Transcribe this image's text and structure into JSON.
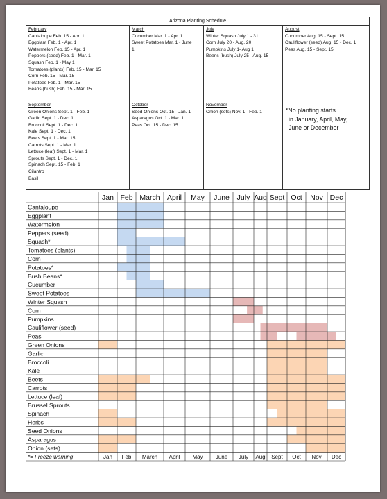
{
  "schedule": {
    "title": "Arizona Planting Schedule",
    "row1": [
      {
        "month": "February",
        "items": [
          "Cantaloupe Feb. 15 - Apr. 1",
          "Eggplant Feb. 1 - Apr. 1",
          "Watermelon Feb. 15 - Apr. 1",
          "Peppers (seed) Feb. 1 - Mar. 1",
          "Squash Feb. 1 - May 1",
          "Tomatoes (plants) Feb. 15 - Mar. 15",
          "Corn Feb. 15 - Mar. 15",
          "Potatoes Feb. 1 - Mar. 15",
          "Beans (bush) Feb. 15 - Mar. 15"
        ]
      },
      {
        "month": "March",
        "items": [
          "Cucumber Mar. 1 - Apr. 1",
          "Sweet Potatoes Mar. 1 - June",
          "1"
        ]
      },
      {
        "month": "July",
        "items": [
          "Winter Squash July 1 - 31",
          "Corn July 20 - Aug. 20",
          "Pumpkins July 1- Aug 1",
          "Beans (bush) July 25 - Aug. 15"
        ]
      },
      {
        "month": "August",
        "items": [
          "Cucumber Aug. 15 - Sept. 15",
          "Cauliflower (seed) Aug. 15 - Dec. 1",
          "Peas Aug. 15 - Sept. 15"
        ]
      }
    ],
    "row2": [
      {
        "month": "September",
        "items": [
          "Green Onions Sept. 1 - Feb. 1",
          "Garlic Sept. 1 - Dec. 1",
          "Broccoli Sept. 1 - Dec. 1",
          "Kale Sept. 1 - Dec. 1",
          "Beets Sept. 1 - Mar. 15",
          "Carrots Sept. 1 - Mar. 1",
          "Lettuce (leaf) Sept. 1 - Mar. 1",
          "Sprouts Sept. 1 - Dec. 1",
          "Spinach Sept. 15 - Feb. 1",
          "Cilantro",
          "Basil"
        ]
      },
      {
        "month": "October",
        "items": [
          "Seed Onions Oct. 15 - Jan. 1",
          "Asparagus Oct. 1 - Mar. 1",
          "Peas Oct. 15 - Dec. 15"
        ]
      },
      {
        "month": "November",
        "items": [
          "Onion (sets) Nov. 1 - Feb. 1"
        ]
      },
      {
        "note_lines": [
          "*No planting starts",
          "in January, April, May,",
          "June or December"
        ]
      }
    ]
  },
  "grid": {
    "months": [
      "Jan",
      "Feb",
      "March",
      "April",
      "May",
      "June",
      "July",
      "Aug",
      "Sept",
      "Oct",
      "Nov",
      "Dec"
    ],
    "footer_note": "*= Freeze warning",
    "colors": {
      "warm_season": "#c5d9f1",
      "summer_fall": "#e6b8b7",
      "cool_season": "#fcd5b4",
      "grid_line": "#222222"
    },
    "crops": [
      {
        "name": "Cantaloupe",
        "season": "warm_season",
        "months": [
          [
            2,
            4
          ]
        ]
      },
      {
        "name": "Eggplant",
        "season": "warm_season",
        "months": [
          [
            2,
            4
          ]
        ]
      },
      {
        "name": "Watermelon",
        "season": "warm_season",
        "months": [
          [
            2,
            4
          ]
        ]
      },
      {
        "name": "Peppers (seed)",
        "season": "warm_season",
        "months": [
          [
            2,
            3
          ]
        ]
      },
      {
        "name": "Squash*",
        "season": "warm_season",
        "months": [
          [
            2,
            5
          ]
        ]
      },
      {
        "name": "Tomatoes (plants)",
        "season": "warm_season",
        "months": [
          [
            2.5,
            3.5
          ]
        ]
      },
      {
        "name": "Corn",
        "season": "warm_season",
        "months": [
          [
            2.5,
            3.5
          ]
        ]
      },
      {
        "name": "Potatoes*",
        "season": "warm_season",
        "months": [
          [
            2,
            3.5
          ]
        ]
      },
      {
        "name": "Bush Beans*",
        "season": "warm_season",
        "months": [
          [
            2.5,
            3.5
          ]
        ]
      },
      {
        "name": "Cucumber",
        "season": "warm_season",
        "months": [
          [
            3,
            4
          ]
        ]
      },
      {
        "name": "Sweet Potatoes",
        "season": "warm_season",
        "months": [
          [
            3,
            6
          ]
        ]
      },
      {
        "name": "Winter Squash",
        "season": "summer_fall",
        "months": [
          [
            7,
            8
          ]
        ]
      },
      {
        "name": "Corn",
        "season": "summer_fall",
        "months": [
          [
            7.67,
            8.67
          ]
        ]
      },
      {
        "name": "Pumpkins",
        "season": "summer_fall",
        "months": [
          [
            7,
            8
          ]
        ]
      },
      {
        "name": "Cauliflower (seed)",
        "season": "summer_fall",
        "months": [
          [
            8.5,
            12
          ]
        ]
      },
      {
        "name": "Peas",
        "season": "summer_fall",
        "months": [
          [
            8.5,
            9.5
          ],
          [
            10.5,
            12.5
          ]
        ]
      },
      {
        "name": "Green Onions",
        "season": "cool_season",
        "months": [
          [
            1,
            2
          ],
          [
            9,
            13
          ]
        ]
      },
      {
        "name": "Garlic",
        "season": "cool_season",
        "months": [
          [
            9,
            12
          ]
        ]
      },
      {
        "name": "Broccoli",
        "season": "cool_season",
        "months": [
          [
            9,
            12
          ]
        ]
      },
      {
        "name": "Kale",
        "season": "cool_season",
        "months": [
          [
            9,
            12
          ]
        ]
      },
      {
        "name": "Beets",
        "season": "cool_season",
        "months": [
          [
            1,
            3.5
          ],
          [
            9,
            13
          ]
        ]
      },
      {
        "name": "Carrots",
        "season": "cool_season",
        "months": [
          [
            1,
            3
          ],
          [
            9,
            13
          ]
        ]
      },
      {
        "name": "Lettuce (leaf)",
        "season": "cool_season",
        "months": [
          [
            1,
            3
          ],
          [
            9,
            13
          ]
        ]
      },
      {
        "name": "Brussel Sprouts",
        "season": "cool_season",
        "months": [
          [
            9,
            12
          ]
        ]
      },
      {
        "name": "Spinach",
        "season": "cool_season",
        "months": [
          [
            1,
            2
          ],
          [
            9.5,
            13
          ]
        ]
      },
      {
        "name": "Herbs",
        "season": "cool_season",
        "months": [
          [
            1,
            3
          ],
          [
            9,
            13
          ]
        ]
      },
      {
        "name": "Seed Onions",
        "season": "cool_season",
        "months": [
          [
            10.5,
            13
          ]
        ]
      },
      {
        "name": "Asparagus",
        "season": "cool_season",
        "months": [
          [
            1,
            3
          ],
          [
            10,
            13
          ]
        ]
      },
      {
        "name": "Onion (sets)",
        "season": "cool_season",
        "months": [
          [
            1,
            2
          ],
          [
            11,
            13
          ]
        ]
      }
    ]
  }
}
